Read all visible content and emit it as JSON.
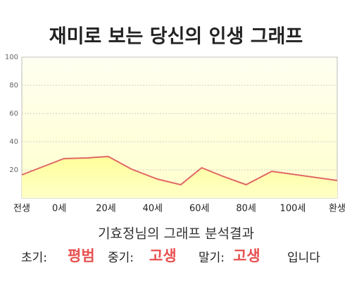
{
  "chart_data": {
    "type": "area",
    "title": "재미로 보는 당신의 인생 그래프",
    "x": [
      -16,
      2,
      12,
      21,
      31,
      42,
      52,
      61,
      70,
      80,
      91,
      119
    ],
    "series": [
      {
        "color": "#e06666",
        "values": [
          16.5,
          28,
          28.5,
          29.5,
          20.5,
          13.5,
          9.5,
          21.5,
          15.5,
          9.5,
          19,
          12.5
        ]
      }
    ],
    "xlim": [
      -16,
      119
    ],
    "xticks": [
      {
        "value": -16,
        "label": "전생"
      },
      {
        "value": 0,
        "label": "0세"
      },
      {
        "value": 20,
        "label": "20세"
      },
      {
        "value": 40,
        "label": "40세"
      },
      {
        "value": 60,
        "label": "60세"
      },
      {
        "value": 80,
        "label": "80세"
      },
      {
        "value": 100,
        "label": "100세"
      },
      {
        "value": 119,
        "label": "환생"
      }
    ],
    "ylim": [
      0,
      100
    ],
    "yticks": [
      20,
      40,
      60,
      80,
      100
    ],
    "grid": true
  },
  "analysis": {
    "heading": "기효정님의 그래프 분석결과",
    "early_label": "초기:",
    "early": "평범",
    "middle_label": "중기:",
    "middle": "고생",
    "late_label": "말기:",
    "late": "고생",
    "ending": "입니다"
  }
}
